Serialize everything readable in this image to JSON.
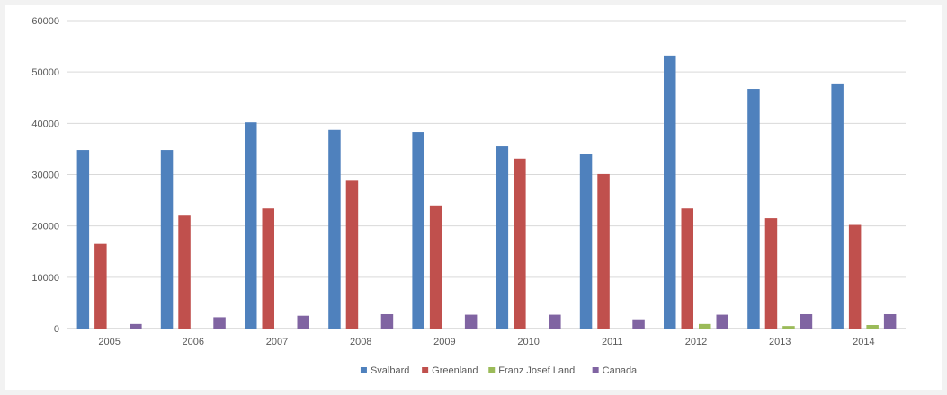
{
  "chart_data": {
    "type": "bar",
    "title": "",
    "xlabel": "",
    "ylabel": "",
    "categories": [
      "2005",
      "2006",
      "2007",
      "2008",
      "2009",
      "2010",
      "2011",
      "2012",
      "2013",
      "2014"
    ],
    "ylim": [
      0,
      60000
    ],
    "yticks": [
      "0",
      "10000",
      "20000",
      "30000",
      "40000",
      "50000",
      "60000"
    ],
    "grid": true,
    "legend_position": "bottom",
    "series": [
      {
        "name": "Svalbard",
        "color": "#4f81bd",
        "values": [
          34800,
          34800,
          40200,
          38700,
          38300,
          35500,
          34000,
          53200,
          46700,
          47600
        ]
      },
      {
        "name": "Greenland",
        "color": "#c0504d",
        "values": [
          16500,
          22000,
          23400,
          28800,
          24000,
          33100,
          30100,
          23400,
          21500,
          20200
        ]
      },
      {
        "name": "Franz Josef Land",
        "color": "#9bbb59",
        "values": [
          0,
          0,
          0,
          0,
          0,
          0,
          0,
          900,
          500,
          700
        ]
      },
      {
        "name": "Canada",
        "color": "#8064a2",
        "values": [
          900,
          2200,
          2500,
          2800,
          2700,
          2700,
          1800,
          2700,
          2800,
          2800
        ]
      }
    ]
  }
}
